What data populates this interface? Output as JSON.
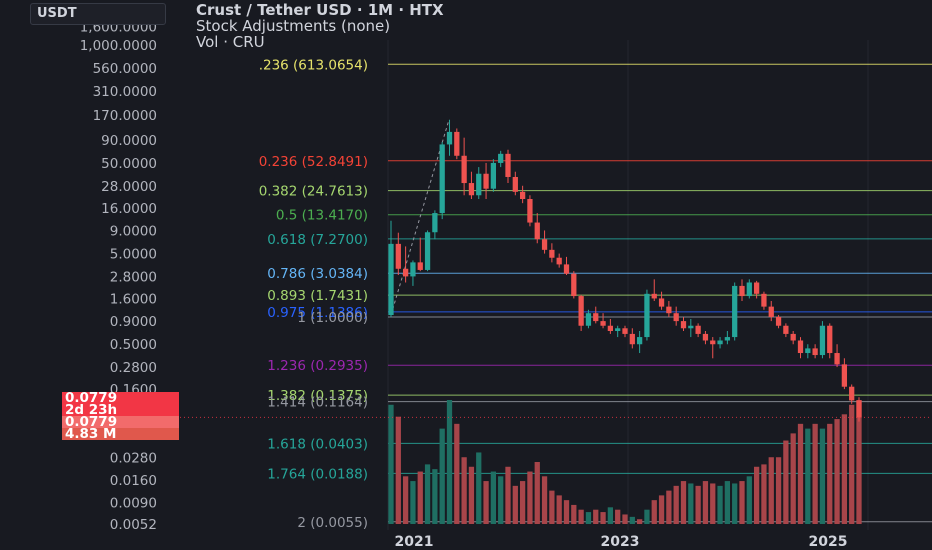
{
  "currency_button": "USDT",
  "legend": {
    "title": "Crust / Tether USD · 1M · HTX",
    "adjustments": "Stock Adjustments (none)",
    "volume": "Vol · CRU"
  },
  "price_tags": {
    "last": "0.0779",
    "countdown": "2d 23h",
    "last2": "0.0779",
    "volume": "4.83 M"
  },
  "colors": {
    "up": "#26a69a",
    "down": "#ef5350",
    "up_volume": "#1f6f63",
    "down_volume": "#a8454a",
    "background": "#181a21",
    "tag": "#f23645"
  },
  "chart_data": {
    "type": "candlestick",
    "title": "Crust / Tether USD · 1M · HTX",
    "y_scale": "log",
    "y_ticks": [
      "1,600.0000",
      "1,000.0000",
      "560.0000",
      "310.0000",
      "170.0000",
      "90.0000",
      "50.0000",
      "28.0000",
      "16.0000",
      "9.0000",
      "5.0000",
      "2.8000",
      "1.6000",
      "0.9000",
      "0.5000",
      "0.2800",
      "0.1600",
      "0.0900",
      "0.0500",
      "0.0280",
      "0.0160",
      "0.0090",
      "0.0052"
    ],
    "x_ticks": [
      "2021",
      "2023",
      "2025"
    ],
    "fib_levels": [
      {
        "label": ".236 (613.0654)",
        "value": 613.0654,
        "color": "#e6e36b"
      },
      {
        "label": "0.236 (52.8491)",
        "value": 52.8491,
        "color": "#f44336"
      },
      {
        "label": "0.382 (24.7613)",
        "value": 24.7613,
        "color": "#a5d66f"
      },
      {
        "label": "0.5 (13.4170)",
        "value": 13.417,
        "color": "#4caf50"
      },
      {
        "label": "0.618 (7.2700)",
        "value": 7.27,
        "color": "#26a69a"
      },
      {
        "label": "0.786 (3.0384)",
        "value": 3.0384,
        "color": "#64b5f6"
      },
      {
        "label": "0.893 (1.7431)",
        "value": 1.7431,
        "color": "#a5d66f"
      },
      {
        "label": "0.975 (1.1386)",
        "value": 1.1386,
        "color": "#2962ff"
      },
      {
        "label": "1 (1.0000)",
        "value": 1.0,
        "color": "#9598a1"
      },
      {
        "label": "1.236 (0.2935)",
        "value": 0.2935,
        "color": "#9c27b0"
      },
      {
        "label": "1.382 (0.1375)",
        "value": 0.1375,
        "color": "#a5d66f"
      },
      {
        "label": "1.414 (0.1164)",
        "value": 0.1164,
        "color": "#9598a1"
      },
      {
        "label": "1.618 (0.0403)",
        "value": 0.0403,
        "color": "#26a69a"
      },
      {
        "label": "1.764 (0.0188)",
        "value": 0.0188,
        "color": "#26a69a"
      },
      {
        "label": "2 (0.0055)",
        "value": 0.0055,
        "color": "#9598a1"
      }
    ],
    "candles": [
      {
        "o": 1.05,
        "h": 11.5,
        "l": 1.0,
        "c": 6.4
      },
      {
        "o": 6.4,
        "h": 8.5,
        "l": 2.9,
        "c": 3.4
      },
      {
        "o": 3.4,
        "h": 6.0,
        "l": 2.4,
        "c": 2.8
      },
      {
        "o": 2.8,
        "h": 4.2,
        "l": 2.2,
        "c": 4.0
      },
      {
        "o": 4.0,
        "h": 7.5,
        "l": 3.2,
        "c": 3.3
      },
      {
        "o": 3.3,
        "h": 9.0,
        "l": 3.2,
        "c": 8.6
      },
      {
        "o": 8.6,
        "h": 15.0,
        "l": 7.2,
        "c": 14.0
      },
      {
        "o": 14.0,
        "h": 85.0,
        "l": 12.0,
        "c": 80.0
      },
      {
        "o": 80.0,
        "h": 150.0,
        "l": 60.0,
        "c": 110.0
      },
      {
        "o": 110.0,
        "h": 120.0,
        "l": 55.0,
        "c": 60.0
      },
      {
        "o": 60.0,
        "h": 95.0,
        "l": 22.0,
        "c": 30.0
      },
      {
        "o": 30.0,
        "h": 40.0,
        "l": 20.0,
        "c": 22.0
      },
      {
        "o": 22.0,
        "h": 45.0,
        "l": 20.0,
        "c": 38.0
      },
      {
        "o": 38.0,
        "h": 50.0,
        "l": 20.0,
        "c": 26.0
      },
      {
        "o": 26.0,
        "h": 55.0,
        "l": 24.0,
        "c": 50.0
      },
      {
        "o": 50.0,
        "h": 68.0,
        "l": 45.0,
        "c": 63.0
      },
      {
        "o": 63.0,
        "h": 70.0,
        "l": 30.0,
        "c": 35.0
      },
      {
        "o": 35.0,
        "h": 40.0,
        "l": 22.0,
        "c": 24.0
      },
      {
        "o": 24.0,
        "h": 28.0,
        "l": 18.0,
        "c": 20.0
      },
      {
        "o": 20.0,
        "h": 22.0,
        "l": 10.0,
        "c": 11.0
      },
      {
        "o": 11.0,
        "h": 14.0,
        "l": 6.5,
        "c": 7.2
      },
      {
        "o": 7.2,
        "h": 9.0,
        "l": 5.0,
        "c": 5.5
      },
      {
        "o": 5.5,
        "h": 6.5,
        "l": 4.0,
        "c": 4.5
      },
      {
        "o": 4.5,
        "h": 5.0,
        "l": 3.5,
        "c": 3.8
      },
      {
        "o": 3.8,
        "h": 4.6,
        "l": 2.9,
        "c": 3.0
      },
      {
        "o": 3.0,
        "h": 3.2,
        "l": 1.6,
        "c": 1.7
      },
      {
        "o": 1.7,
        "h": 1.75,
        "l": 0.7,
        "c": 0.8
      },
      {
        "o": 0.8,
        "h": 1.2,
        "l": 0.75,
        "c": 1.1
      },
      {
        "o": 1.1,
        "h": 1.3,
        "l": 0.85,
        "c": 0.9
      },
      {
        "o": 0.9,
        "h": 1.1,
        "l": 0.75,
        "c": 0.8
      },
      {
        "o": 0.8,
        "h": 0.95,
        "l": 0.65,
        "c": 0.7
      },
      {
        "o": 0.7,
        "h": 0.8,
        "l": 0.6,
        "c": 0.75
      },
      {
        "o": 0.75,
        "h": 0.8,
        "l": 0.6,
        "c": 0.65
      },
      {
        "o": 0.65,
        "h": 0.75,
        "l": 0.45,
        "c": 0.5
      },
      {
        "o": 0.5,
        "h": 0.7,
        "l": 0.4,
        "c": 0.6
      },
      {
        "o": 0.6,
        "h": 2.0,
        "l": 0.55,
        "c": 1.8
      },
      {
        "o": 1.8,
        "h": 2.6,
        "l": 1.5,
        "c": 1.6
      },
      {
        "o": 1.6,
        "h": 1.9,
        "l": 1.2,
        "c": 1.3
      },
      {
        "o": 1.3,
        "h": 1.5,
        "l": 1.0,
        "c": 1.1
      },
      {
        "o": 1.1,
        "h": 1.3,
        "l": 0.8,
        "c": 0.9
      },
      {
        "o": 0.9,
        "h": 1.0,
        "l": 0.7,
        "c": 0.75
      },
      {
        "o": 0.75,
        "h": 0.95,
        "l": 0.6,
        "c": 0.8
      },
      {
        "o": 0.8,
        "h": 0.85,
        "l": 0.6,
        "c": 0.65
      },
      {
        "o": 0.65,
        "h": 0.7,
        "l": 0.5,
        "c": 0.55
      },
      {
        "o": 0.55,
        "h": 0.6,
        "l": 0.35,
        "c": 0.5
      },
      {
        "o": 0.5,
        "h": 0.6,
        "l": 0.45,
        "c": 0.55
      },
      {
        "o": 0.55,
        "h": 0.7,
        "l": 0.5,
        "c": 0.6
      },
      {
        "o": 0.6,
        "h": 2.4,
        "l": 0.55,
        "c": 2.2
      },
      {
        "o": 2.2,
        "h": 2.6,
        "l": 1.5,
        "c": 1.7
      },
      {
        "o": 1.7,
        "h": 2.6,
        "l": 1.6,
        "c": 2.4
      },
      {
        "o": 2.4,
        "h": 2.5,
        "l": 1.6,
        "c": 1.8
      },
      {
        "o": 1.8,
        "h": 1.9,
        "l": 1.2,
        "c": 1.3
      },
      {
        "o": 1.3,
        "h": 1.5,
        "l": 0.9,
        "c": 1.0
      },
      {
        "o": 1.0,
        "h": 1.05,
        "l": 0.75,
        "c": 0.8
      },
      {
        "o": 0.8,
        "h": 0.85,
        "l": 0.6,
        "c": 0.65
      },
      {
        "o": 0.65,
        "h": 0.7,
        "l": 0.5,
        "c": 0.55
      },
      {
        "o": 0.55,
        "h": 0.6,
        "l": 0.35,
        "c": 0.4
      },
      {
        "o": 0.4,
        "h": 0.5,
        "l": 0.35,
        "c": 0.45
      },
      {
        "o": 0.45,
        "h": 0.5,
        "l": 0.35,
        "c": 0.38
      },
      {
        "o": 0.38,
        "h": 0.9,
        "l": 0.35,
        "c": 0.8
      },
      {
        "o": 0.8,
        "h": 0.85,
        "l": 0.35,
        "c": 0.4
      },
      {
        "o": 0.4,
        "h": 0.5,
        "l": 0.28,
        "c": 0.3
      },
      {
        "o": 0.3,
        "h": 0.35,
        "l": 0.16,
        "c": 0.17
      },
      {
        "o": 0.17,
        "h": 0.18,
        "l": 0.11,
        "c": 0.12
      },
      {
        "o": 0.12,
        "h": 0.13,
        "l": 0.07,
        "c": 0.0779
      }
    ],
    "volumes": [
      50,
      45,
      20,
      18,
      22,
      25,
      23,
      40,
      52,
      42,
      28,
      24,
      30,
      18,
      22,
      20,
      24,
      16,
      18,
      22,
      26,
      20,
      14,
      12,
      10,
      8,
      6,
      5,
      6,
      5,
      7,
      6,
      4,
      3,
      2,
      6,
      10,
      12,
      14,
      16,
      18,
      17,
      16,
      18,
      17,
      16,
      18,
      17,
      18,
      20,
      24,
      25,
      28,
      28,
      35,
      38,
      42,
      40,
      42,
      40,
      42,
      44,
      46,
      50,
      52
    ],
    "volume_up": [
      true,
      false,
      false,
      true,
      false,
      true,
      true,
      true,
      true,
      false,
      false,
      false,
      true,
      false,
      true,
      true,
      false,
      false,
      false,
      false,
      false,
      false,
      false,
      false,
      false,
      false,
      false,
      true,
      false,
      false,
      true,
      false,
      false,
      true,
      false,
      true,
      false,
      false,
      false,
      false,
      false,
      true,
      false,
      false,
      false,
      true,
      true,
      true,
      false,
      true,
      false,
      false,
      false,
      false,
      false,
      false,
      false,
      true,
      false,
      true,
      false,
      false,
      false,
      false,
      false
    ]
  }
}
